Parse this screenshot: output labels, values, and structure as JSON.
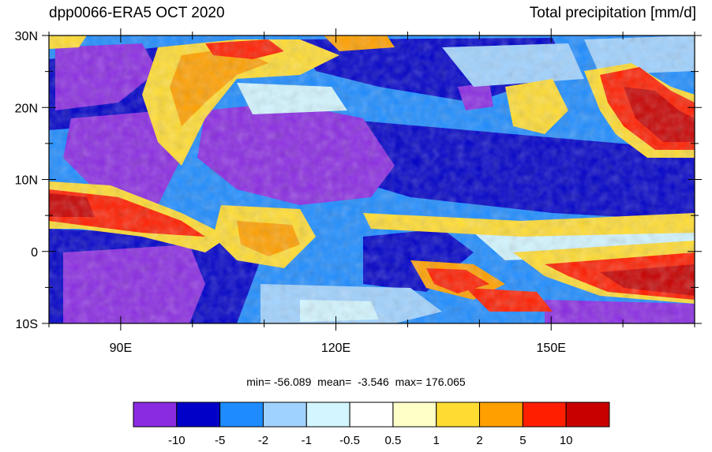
{
  "header": {
    "left_title": "dpp0066-ERA5 OCT 2020",
    "right_title": "Total precipitation [mm/d]"
  },
  "map": {
    "lat_labels": [
      "30N",
      "20N",
      "10N",
      "0",
      "10S"
    ],
    "lon_labels": [
      "90E",
      "120E",
      "150E"
    ],
    "lat_range": [
      -10,
      30
    ],
    "lon_range": [
      80,
      170
    ]
  },
  "stats": {
    "text": "min= -56.089  mean=  -3.546  max= 176.065",
    "min": -56.089,
    "mean": -3.546,
    "max": 176.065
  },
  "colorbar": {
    "labels": [
      "-10",
      "-5",
      "-2",
      "-1",
      "-0.5",
      "0.5",
      "1",
      "2",
      "5",
      "10"
    ],
    "colors": [
      "#8a2be2",
      "#0000c8",
      "#1e8cff",
      "#a0d2ff",
      "#d2f5ff",
      "#ffffff",
      "#ffffc8",
      "#ffdc32",
      "#ffa000",
      "#ff1e00",
      "#c80000"
    ]
  }
}
